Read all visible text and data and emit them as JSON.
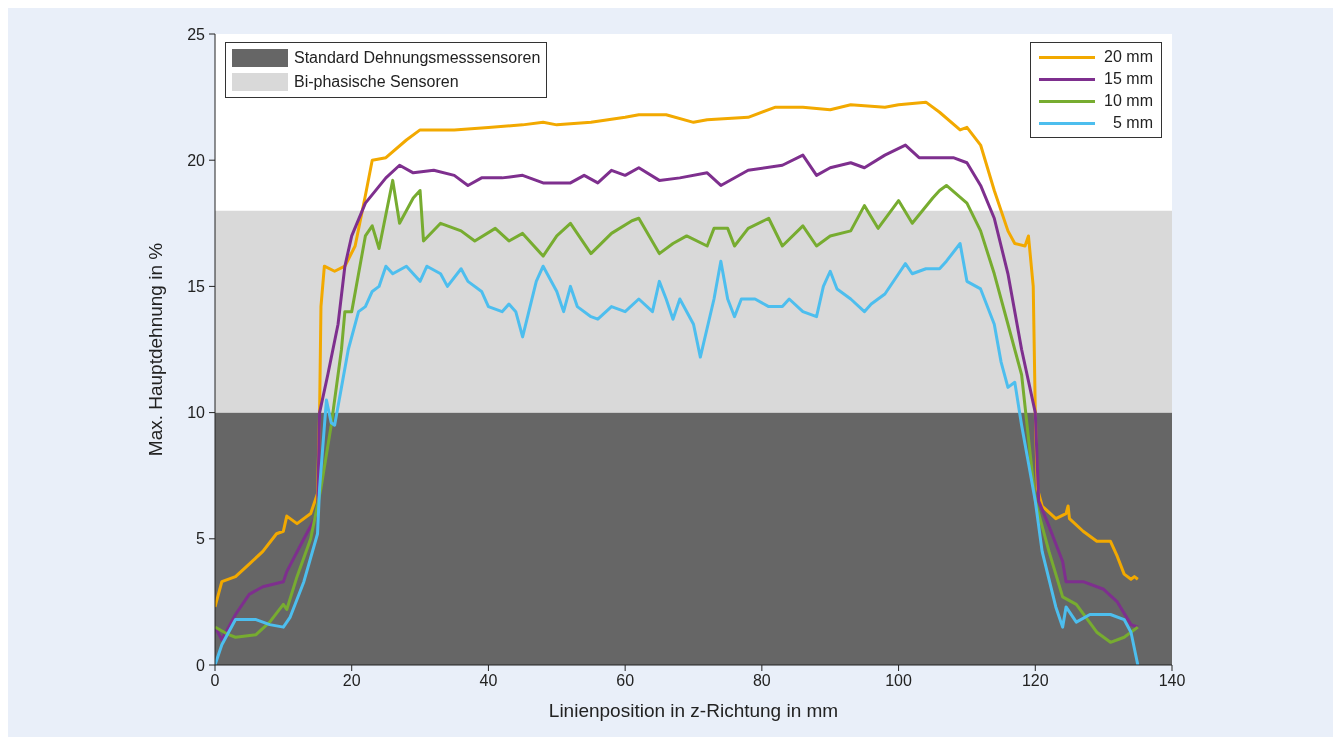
{
  "chart_data": {
    "type": "line",
    "xlabel": "Linienposition in z-Richtung in mm",
    "ylabel": "Max. Hauptdehnung in %",
    "xlim": [
      0,
      140
    ],
    "xticks": [
      0,
      20,
      40,
      60,
      80,
      100,
      120,
      140
    ],
    "ylim": [
      0,
      25
    ],
    "yticks": [
      0,
      5,
      10,
      15,
      20,
      25
    ],
    "grid": false,
    "legend": "top right",
    "marker": "none",
    "line_style": "solid",
    "bands": [
      {
        "axis": "y",
        "from": 0,
        "to": 10,
        "label": "Standard Dehnungsmesssensoren",
        "color": "#666666"
      },
      {
        "axis": "y",
        "from": 10,
        "to": 18,
        "label": "Bi-phasische Sensoren",
        "color": "#d9d9d9"
      }
    ],
    "series": [
      {
        "name": "20 mm",
        "color": "#f2a900",
        "x": [
          0,
          1,
          3,
          5,
          7,
          9,
          10,
          10.5,
          12,
          14,
          15,
          15.3,
          15.5,
          16,
          17.5,
          19,
          20.5,
          22,
          23,
          25,
          28,
          30,
          35,
          40,
          45,
          48,
          50,
          55,
          60,
          62,
          66,
          70,
          72,
          78,
          82,
          86,
          90,
          93,
          98,
          100,
          104,
          106,
          109,
          110,
          112,
          114,
          116,
          117,
          118.5,
          119,
          119.7,
          120,
          120.3,
          121,
          123,
          124.5,
          124.8,
          125,
          127,
          129,
          131,
          132,
          133,
          134,
          134.5,
          135
        ],
        "values": [
          2.3,
          3.3,
          3.5,
          4.0,
          4.5,
          5.2,
          5.3,
          5.9,
          5.6,
          6.0,
          6.8,
          10,
          14.2,
          15.8,
          15.6,
          15.8,
          16.6,
          18.6,
          20,
          20.1,
          20.8,
          21.2,
          21.2,
          21.3,
          21.4,
          21.5,
          21.4,
          21.5,
          21.7,
          21.8,
          21.8,
          21.5,
          21.6,
          21.7,
          22.1,
          22.1,
          22.0,
          22.2,
          22.1,
          22.2,
          22.3,
          21.9,
          21.2,
          21.3,
          20.6,
          18.8,
          17.2,
          16.7,
          16.6,
          17,
          15,
          10,
          7,
          6.3,
          5.8,
          6.0,
          6.3,
          5.8,
          5.3,
          4.9,
          4.9,
          4.3,
          3.6,
          3.4,
          3.5,
          3.4
        ]
      },
      {
        "name": "15 mm",
        "color": "#7e2f8e",
        "x": [
          0,
          1,
          3,
          5,
          7,
          10,
          10.5,
          13,
          15,
          15.3,
          16.5,
          18,
          19,
          20,
          22,
          25,
          27,
          29,
          32,
          35,
          37,
          39,
          42,
          45,
          48,
          52,
          54,
          56,
          58,
          60,
          62,
          65,
          68,
          72,
          74,
          78,
          83,
          86,
          88,
          90,
          93,
          95,
          98,
          101,
          103,
          106,
          108,
          110,
          112,
          114,
          116,
          118,
          120,
          120.5,
          122,
          124,
          124.5,
          127,
          130,
          132,
          134,
          135
        ],
        "values": [
          1.5,
          1.0,
          2.0,
          2.8,
          3.1,
          3.3,
          3.7,
          5.0,
          6.0,
          10,
          11.5,
          13.5,
          15.8,
          17,
          18.3,
          19.3,
          19.8,
          19.5,
          19.6,
          19.4,
          19.0,
          19.3,
          19.3,
          19.4,
          19.1,
          19.1,
          19.4,
          19.1,
          19.6,
          19.4,
          19.7,
          19.2,
          19.3,
          19.5,
          19.0,
          19.6,
          19.8,
          20.2,
          19.4,
          19.7,
          19.9,
          19.7,
          20.2,
          20.6,
          20.1,
          20.1,
          20.1,
          19.9,
          19.0,
          17.7,
          15.5,
          12.5,
          10,
          6.5,
          5.5,
          4.1,
          3.3,
          3.3,
          3.0,
          2.5,
          1.6,
          1.5
        ]
      },
      {
        "name": "10 mm",
        "color": "#77ac30",
        "x": [
          0,
          2,
          3,
          6,
          8,
          10,
          10.5,
          12,
          14,
          15.5,
          17,
          18.5,
          19,
          20,
          21,
          22,
          23,
          24,
          26,
          27,
          29,
          30,
          30.5,
          33,
          36,
          38,
          41,
          43,
          45,
          48,
          50,
          52,
          55,
          58,
          61,
          62,
          65,
          67,
          69,
          72,
          73,
          75,
          76,
          78,
          81,
          83,
          86,
          88,
          90,
          93,
          95,
          97,
          100,
          102,
          105,
          106,
          107,
          110,
          112,
          114,
          116,
          118,
          119,
          120,
          122,
          124,
          126,
          129,
          131,
          133,
          135
        ],
        "values": [
          1.5,
          1.2,
          1.1,
          1.2,
          1.7,
          2.4,
          2.2,
          3.5,
          5.0,
          7,
          9.5,
          12.5,
          14,
          14,
          15.5,
          17,
          17.4,
          16.5,
          19.2,
          17.5,
          18.5,
          18.8,
          16.8,
          17.5,
          17.2,
          16.8,
          17.3,
          16.8,
          17.1,
          16.2,
          17.0,
          17.5,
          16.3,
          17.1,
          17.6,
          17.7,
          16.3,
          16.7,
          17.0,
          16.6,
          17.3,
          17.3,
          16.6,
          17.3,
          17.7,
          16.6,
          17.4,
          16.6,
          17.0,
          17.2,
          18.2,
          17.3,
          18.4,
          17.5,
          18.5,
          18.8,
          19.0,
          18.3,
          17.2,
          15.5,
          13.5,
          11.5,
          9.0,
          6.5,
          4.5,
          2.7,
          2.4,
          1.3,
          0.9,
          1.1,
          1.5
        ]
      },
      {
        "name": "5 mm",
        "color": "#4dbeee",
        "x": [
          0,
          1,
          3,
          6,
          8,
          10,
          11,
          13,
          15,
          15.3,
          16.3,
          17,
          17.5,
          18.5,
          19.5,
          21,
          22,
          23,
          24,
          25,
          26,
          28,
          30,
          31,
          33,
          34,
          36,
          37,
          39,
          40,
          42,
          43,
          44,
          45,
          47,
          48,
          50,
          51,
          52,
          53,
          55,
          56,
          58,
          60,
          62,
          64,
          65,
          66,
          67,
          68,
          70,
          71,
          73,
          74,
          75,
          76,
          77,
          79,
          81,
          83,
          84,
          86,
          88,
          89,
          90,
          91,
          93,
          95,
          96,
          98,
          100,
          101,
          102,
          104,
          106,
          107,
          109,
          110,
          112,
          114,
          115,
          116,
          117,
          118,
          119,
          120,
          121,
          123,
          124,
          124.5,
          126,
          128,
          131,
          133,
          134,
          135
        ],
        "values": [
          0,
          0.8,
          1.8,
          1.8,
          1.6,
          1.5,
          1.9,
          3.3,
          5.2,
          7,
          10.5,
          9.6,
          9.5,
          11,
          12.5,
          14,
          14.2,
          14.8,
          15.0,
          15.8,
          15.5,
          15.8,
          15.2,
          15.8,
          15.5,
          15.0,
          15.7,
          15.2,
          14.8,
          14.2,
          14.0,
          14.3,
          14.0,
          13.0,
          15.2,
          15.8,
          14.8,
          14.0,
          15.0,
          14.2,
          13.8,
          13.7,
          14.2,
          14.0,
          14.5,
          14.0,
          15.2,
          14.5,
          13.7,
          14.5,
          13.5,
          12.2,
          14.5,
          16.0,
          14.5,
          13.8,
          14.5,
          14.5,
          14.2,
          14.2,
          14.5,
          14.0,
          13.8,
          15.0,
          15.6,
          14.9,
          14.5,
          14.0,
          14.3,
          14.7,
          15.5,
          15.9,
          15.5,
          15.7,
          15.7,
          16.0,
          16.7,
          15.2,
          14.9,
          13.5,
          12.0,
          11.0,
          11.2,
          9.5,
          8.0,
          6.5,
          4.5,
          2.3,
          1.5,
          2.3,
          1.7,
          2.0,
          2.0,
          1.8,
          1.3,
          0
        ]
      }
    ]
  }
}
